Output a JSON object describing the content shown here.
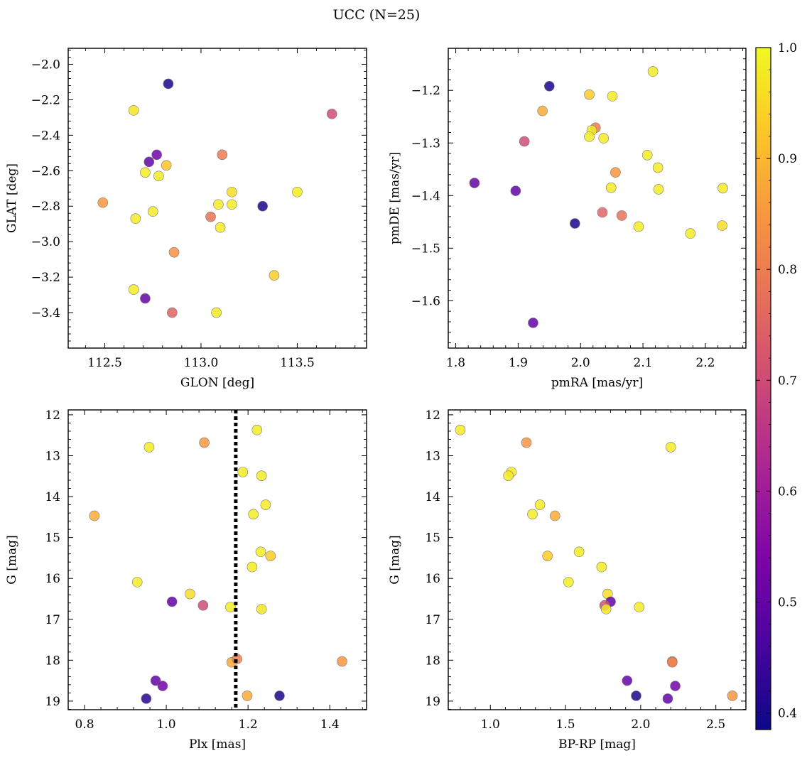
{
  "figure": {
    "title": "UCC (N=25)"
  },
  "colorbar": {
    "range": [
      0.385,
      1.0
    ],
    "ticks": [
      0.4,
      0.5,
      0.6,
      0.7,
      0.8,
      0.9,
      1.0
    ],
    "tick_labels": [
      "0.4",
      "0.5",
      "0.6",
      "0.7",
      "0.8",
      "0.9",
      "1.0"
    ],
    "colormap": "plasma"
  },
  "chart_data": [
    {
      "type": "scatter",
      "xlabel": "GLON [deg]",
      "ylabel": "GLAT [deg]",
      "xlim": [
        112.31,
        113.86
      ],
      "ylim": [
        -3.6,
        -1.91
      ],
      "y_inverted": false,
      "xticks": [
        112.5,
        113.0,
        113.5
      ],
      "xtick_labels": [
        "112.5",
        "113.0",
        "113.5"
      ],
      "yticks": [
        -3.4,
        -3.2,
        -3.0,
        -2.8,
        -2.6,
        -2.4,
        -2.2,
        -2.0
      ],
      "ytick_labels": [
        "−3.4",
        "−3.2",
        "−3.0",
        "−2.8",
        "−2.6",
        "−2.4",
        "−2.2",
        "−2.0"
      ],
      "points": [
        {
          "x": 112.83,
          "y": -2.11,
          "c": 0.4
        },
        {
          "x": 112.65,
          "y": -2.26,
          "c": 0.97
        },
        {
          "x": 113.68,
          "y": -2.28,
          "c": 0.7
        },
        {
          "x": 112.77,
          "y": -2.51,
          "c": 0.52
        },
        {
          "x": 112.73,
          "y": -2.55,
          "c": 0.5
        },
        {
          "x": 113.11,
          "y": -2.51,
          "c": 0.8
        },
        {
          "x": 112.82,
          "y": -2.57,
          "c": 0.92
        },
        {
          "x": 112.71,
          "y": -2.61,
          "c": 0.98
        },
        {
          "x": 112.78,
          "y": -2.63,
          "c": 0.98
        },
        {
          "x": 113.16,
          "y": -2.72,
          "c": 0.96
        },
        {
          "x": 113.5,
          "y": -2.72,
          "c": 0.98
        },
        {
          "x": 112.49,
          "y": -2.78,
          "c": 0.85
        },
        {
          "x": 113.09,
          "y": -2.79,
          "c": 0.98
        },
        {
          "x": 113.16,
          "y": -2.79,
          "c": 0.98
        },
        {
          "x": 113.32,
          "y": -2.8,
          "c": 0.4
        },
        {
          "x": 112.75,
          "y": -2.83,
          "c": 0.98
        },
        {
          "x": 113.05,
          "y": -2.86,
          "c": 0.78
        },
        {
          "x": 112.66,
          "y": -2.87,
          "c": 0.98
        },
        {
          "x": 113.1,
          "y": -2.92,
          "c": 0.98
        },
        {
          "x": 112.86,
          "y": -3.06,
          "c": 0.84
        },
        {
          "x": 113.38,
          "y": -3.19,
          "c": 0.93
        },
        {
          "x": 112.65,
          "y": -3.27,
          "c": 0.98
        },
        {
          "x": 112.71,
          "y": -3.32,
          "c": 0.5
        },
        {
          "x": 112.85,
          "y": -3.4,
          "c": 0.75
        },
        {
          "x": 113.08,
          "y": -3.4,
          "c": 0.98
        }
      ]
    },
    {
      "type": "scatter",
      "xlabel": "pmRA [mas/yr]",
      "ylabel": "pmDE [mas/yr]",
      "xlim": [
        1.788,
        2.265
      ],
      "ylim": [
        -1.69,
        -1.12
      ],
      "y_inverted": false,
      "xticks": [
        1.8,
        1.9,
        2.0,
        2.1,
        2.2
      ],
      "xtick_labels": [
        "1.8",
        "1.9",
        "2.0",
        "2.1",
        "2.2"
      ],
      "yticks": [
        -1.6,
        -1.5,
        -1.4,
        -1.3,
        -1.2
      ],
      "ytick_labels": [
        "−1.6",
        "−1.5",
        "−1.4",
        "−1.3",
        "−1.2"
      ],
      "points": [
        {
          "x": 2.116,
          "y": -1.164,
          "c": 0.98
        },
        {
          "x": 1.95,
          "y": -1.192,
          "c": 0.4
        },
        {
          "x": 2.014,
          "y": -1.208,
          "c": 0.93
        },
        {
          "x": 2.051,
          "y": -1.211,
          "c": 0.98
        },
        {
          "x": 1.939,
          "y": -1.239,
          "c": 0.88
        },
        {
          "x": 2.024,
          "y": -1.271,
          "c": 0.8
        },
        {
          "x": 2.018,
          "y": -1.276,
          "c": 0.98
        },
        {
          "x": 2.014,
          "y": -1.288,
          "c": 0.98
        },
        {
          "x": 2.037,
          "y": -1.291,
          "c": 0.98
        },
        {
          "x": 1.91,
          "y": -1.297,
          "c": 0.7
        },
        {
          "x": 2.107,
          "y": -1.323,
          "c": 0.98
        },
        {
          "x": 2.124,
          "y": -1.347,
          "c": 0.98
        },
        {
          "x": 2.056,
          "y": -1.356,
          "c": 0.85
        },
        {
          "x": 1.83,
          "y": -1.376,
          "c": 0.5
        },
        {
          "x": 2.049,
          "y": -1.385,
          "c": 0.98
        },
        {
          "x": 2.228,
          "y": -1.386,
          "c": 0.98
        },
        {
          "x": 2.125,
          "y": -1.388,
          "c": 0.98
        },
        {
          "x": 1.896,
          "y": -1.391,
          "c": 0.5
        },
        {
          "x": 2.035,
          "y": -1.432,
          "c": 0.75
        },
        {
          "x": 2.066,
          "y": -1.438,
          "c": 0.78
        },
        {
          "x": 1.991,
          "y": -1.453,
          "c": 0.4
        },
        {
          "x": 2.227,
          "y": -1.457,
          "c": 0.96
        },
        {
          "x": 2.093,
          "y": -1.459,
          "c": 0.98
        },
        {
          "x": 2.176,
          "y": -1.472,
          "c": 0.98
        },
        {
          "x": 1.924,
          "y": -1.642,
          "c": 0.5
        }
      ]
    },
    {
      "type": "scatter",
      "xlabel": "Plx [mas]",
      "ylabel": "G [mag]",
      "xlim": [
        0.76,
        1.49
      ],
      "ylim": [
        19.21,
        11.88
      ],
      "y_inverted": true,
      "xticks": [
        0.8,
        1.0,
        1.2,
        1.4
      ],
      "xtick_labels": [
        "0.8",
        "1.0",
        "1.2",
        "1.4"
      ],
      "yticks": [
        12,
        13,
        14,
        15,
        16,
        17,
        18,
        19
      ],
      "ytick_labels": [
        "12",
        "13",
        "14",
        "15",
        "16",
        "17",
        "18",
        "19"
      ],
      "vline": {
        "x": 1.17,
        "style": "dotted"
      },
      "points": [
        {
          "x": 1.222,
          "y": 12.37,
          "c": 0.98
        },
        {
          "x": 1.093,
          "y": 12.68,
          "c": 0.85
        },
        {
          "x": 0.958,
          "y": 12.79,
          "c": 0.98
        },
        {
          "x": 1.187,
          "y": 13.4,
          "c": 0.98
        },
        {
          "x": 1.233,
          "y": 13.49,
          "c": 0.98
        },
        {
          "x": 1.243,
          "y": 14.2,
          "c": 0.98
        },
        {
          "x": 0.824,
          "y": 14.47,
          "c": 0.88
        },
        {
          "x": 1.213,
          "y": 14.43,
          "c": 0.98
        },
        {
          "x": 1.231,
          "y": 15.35,
          "c": 0.98
        },
        {
          "x": 1.255,
          "y": 15.45,
          "c": 0.93
        },
        {
          "x": 1.21,
          "y": 15.72,
          "c": 0.98
        },
        {
          "x": 0.929,
          "y": 16.09,
          "c": 0.98
        },
        {
          "x": 1.058,
          "y": 16.38,
          "c": 0.96
        },
        {
          "x": 1.014,
          "y": 16.57,
          "c": 0.5
        },
        {
          "x": 1.09,
          "y": 16.66,
          "c": 0.7
        },
        {
          "x": 1.157,
          "y": 16.7,
          "c": 0.98
        },
        {
          "x": 1.233,
          "y": 16.75,
          "c": 0.97
        },
        {
          "x": 1.43,
          "y": 18.03,
          "c": 0.85
        },
        {
          "x": 1.16,
          "y": 18.05,
          "c": 0.88
        },
        {
          "x": 1.173,
          "y": 17.97,
          "c": 0.8
        },
        {
          "x": 0.974,
          "y": 18.5,
          "c": 0.5
        },
        {
          "x": 0.991,
          "y": 18.63,
          "c": 0.52
        },
        {
          "x": 1.198,
          "y": 18.87,
          "c": 0.88
        },
        {
          "x": 1.277,
          "y": 18.87,
          "c": 0.4
        },
        {
          "x": 0.951,
          "y": 18.94,
          "c": 0.42
        }
      ]
    },
    {
      "type": "scatter",
      "xlabel": "BP-RP [mag]",
      "ylabel": "G [mag]",
      "xlim": [
        0.72,
        2.7
      ],
      "ylim": [
        19.21,
        11.88
      ],
      "y_inverted": true,
      "xticks": [
        1.0,
        1.5,
        2.0,
        2.5
      ],
      "xtick_labels": [
        "1.0",
        "1.5",
        "2.0",
        "2.5"
      ],
      "yticks": [
        12,
        13,
        14,
        15,
        16,
        17,
        18,
        19
      ],
      "ytick_labels": [
        "12",
        "13",
        "14",
        "15",
        "16",
        "17",
        "18",
        "19"
      ],
      "points": [
        {
          "x": 0.8,
          "y": 12.37,
          "c": 0.98
        },
        {
          "x": 1.24,
          "y": 12.68,
          "c": 0.85
        },
        {
          "x": 2.2,
          "y": 12.79,
          "c": 0.98
        },
        {
          "x": 1.14,
          "y": 13.4,
          "c": 0.98
        },
        {
          "x": 1.12,
          "y": 13.49,
          "c": 0.98
        },
        {
          "x": 1.33,
          "y": 14.2,
          "c": 0.98
        },
        {
          "x": 1.28,
          "y": 14.43,
          "c": 0.98
        },
        {
          "x": 1.43,
          "y": 14.47,
          "c": 0.88
        },
        {
          "x": 1.59,
          "y": 15.35,
          "c": 0.98
        },
        {
          "x": 1.38,
          "y": 15.45,
          "c": 0.93
        },
        {
          "x": 1.74,
          "y": 15.72,
          "c": 0.98
        },
        {
          "x": 1.52,
          "y": 16.09,
          "c": 0.98
        },
        {
          "x": 1.78,
          "y": 16.38,
          "c": 0.96
        },
        {
          "x": 1.8,
          "y": 16.57,
          "c": 0.5
        },
        {
          "x": 1.76,
          "y": 16.66,
          "c": 0.7
        },
        {
          "x": 1.99,
          "y": 16.7,
          "c": 0.98
        },
        {
          "x": 1.77,
          "y": 16.75,
          "c": 0.97
        },
        {
          "x": 2.21,
          "y": 18.03,
          "c": 0.85
        },
        {
          "x": 2.21,
          "y": 18.05,
          "c": 0.8
        },
        {
          "x": 1.91,
          "y": 18.5,
          "c": 0.5
        },
        {
          "x": 2.23,
          "y": 18.63,
          "c": 0.52
        },
        {
          "x": 1.97,
          "y": 18.87,
          "c": 0.4
        },
        {
          "x": 2.61,
          "y": 18.87,
          "c": 0.85
        },
        {
          "x": 2.18,
          "y": 18.94,
          "c": 0.5
        }
      ]
    }
  ]
}
